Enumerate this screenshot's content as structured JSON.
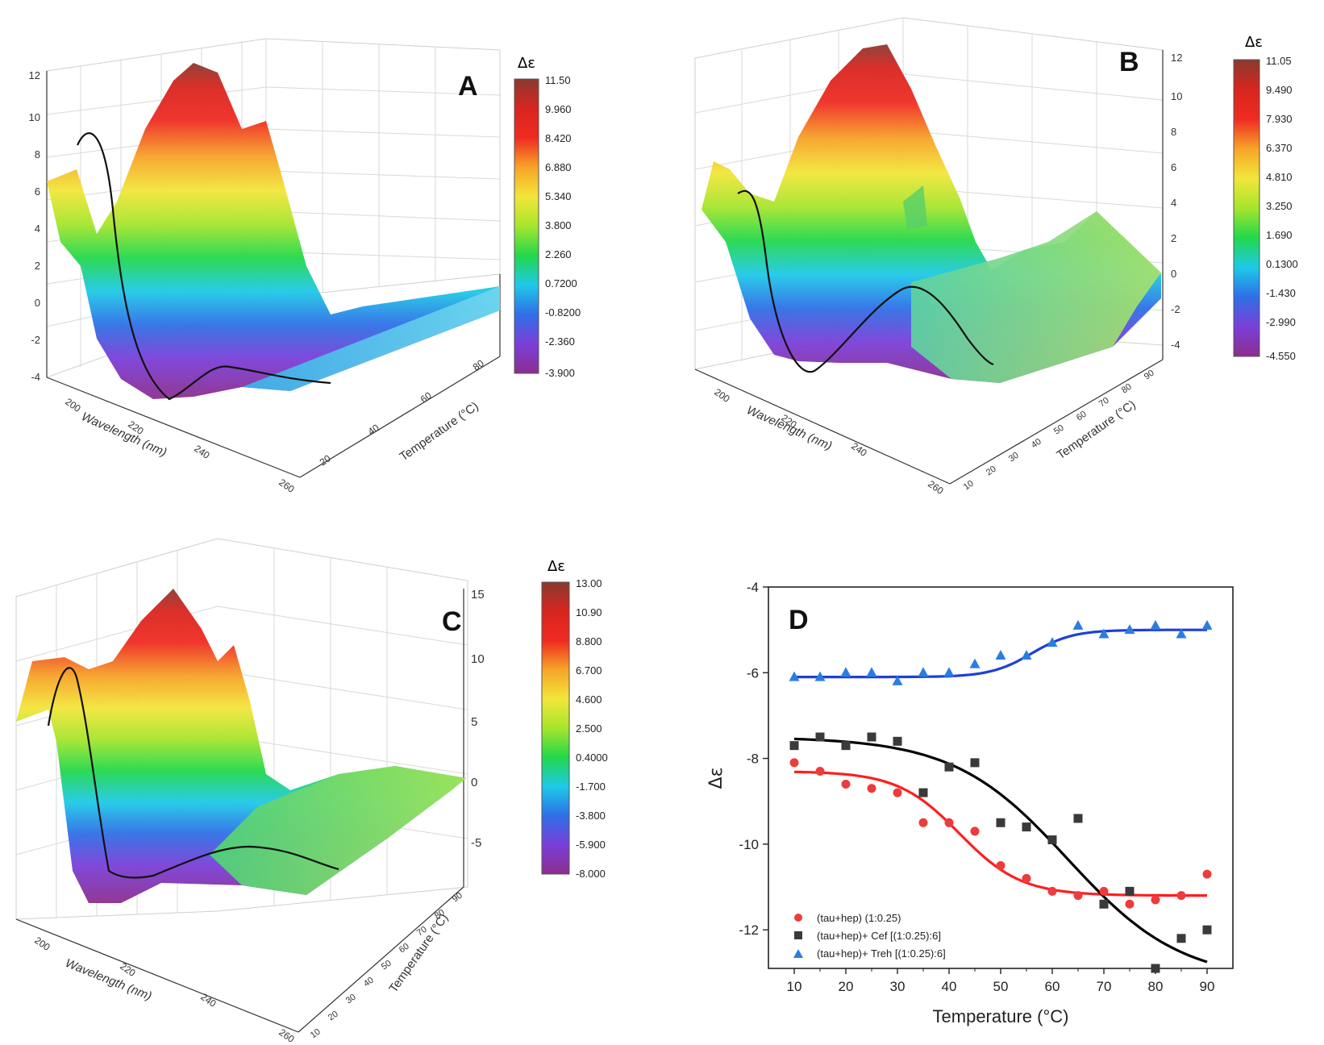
{
  "figure": {
    "colorbar_title": "Δε",
    "colorbar_stops": [
      "#8c2e8e",
      "#7a3fd8",
      "#2f6fe6",
      "#1ec9e8",
      "#22d84b",
      "#a6e52d",
      "#f2e63a",
      "#f7a428",
      "#ef2b22",
      "#d8251f",
      "#8a3a30"
    ]
  },
  "chart_data": [
    {
      "id": "A",
      "type": "surface3d",
      "title": "A",
      "xlabel": "Wavelength (nm)",
      "ylabel": "Temperature (°C)",
      "zlabel": "Δε",
      "x_ticks": [
        "200",
        "220",
        "240",
        "260"
      ],
      "y_ticks": [
        "20",
        "40",
        "60",
        "80"
      ],
      "z_ticks": [
        "-4",
        "-2",
        "0",
        "2",
        "4",
        "6",
        "8",
        "10",
        "12"
      ],
      "colorbar_ticks": [
        "11.50",
        "9.960",
        "8.420",
        "6.880",
        "5.340",
        "3.800",
        "2.260",
        "0.7200",
        "-0.8200",
        "-2.360",
        "-3.900"
      ]
    },
    {
      "id": "B",
      "type": "surface3d",
      "title": "B",
      "xlabel": "Wavelength (nm)",
      "ylabel": "Temperature (°C)",
      "zlabel": "Δε",
      "x_ticks": [
        "200",
        "220",
        "240",
        "260"
      ],
      "y_ticks": [
        "10",
        "20",
        "30",
        "40",
        "50",
        "60",
        "70",
        "80",
        "90"
      ],
      "z_ticks": [
        "-4",
        "-2",
        "0",
        "2",
        "4",
        "6",
        "8",
        "10",
        "12"
      ],
      "colorbar_ticks": [
        "11.05",
        "9.490",
        "7.930",
        "6.370",
        "4.810",
        "3.250",
        "1.690",
        "0.1300",
        "-1.430",
        "-2.990",
        "-4.550"
      ]
    },
    {
      "id": "C",
      "type": "surface3d",
      "title": "C",
      "xlabel": "Wavelength (nm)",
      "ylabel": "Temperature (°C)",
      "zlabel": "Δε",
      "x_ticks": [
        "200",
        "220",
        "240",
        "260"
      ],
      "y_ticks": [
        "10",
        "20",
        "30",
        "40",
        "50",
        "60",
        "70",
        "80",
        "90"
      ],
      "z_ticks": [
        "-5",
        "0",
        "5",
        "10",
        "15"
      ],
      "colorbar_ticks": [
        "13.00",
        "10.90",
        "8.800",
        "6.700",
        "4.600",
        "2.500",
        "0.4000",
        "-1.700",
        "-3.800",
        "-5.900",
        "-8.000"
      ]
    },
    {
      "id": "D",
      "type": "scatter",
      "title": "D",
      "xlabel": "Temperature (°C)",
      "ylabel": "Δε",
      "xlim": [
        5,
        95
      ],
      "ylim": [
        -12.9,
        -4
      ],
      "x_ticks": [
        10,
        20,
        30,
        40,
        50,
        60,
        70,
        80,
        90
      ],
      "y_ticks": [
        -4,
        -6,
        -8,
        -10,
        -12
      ],
      "x": [
        10,
        15,
        20,
        25,
        30,
        35,
        40,
        45,
        50,
        55,
        60,
        65,
        70,
        75,
        80,
        85,
        90
      ],
      "series": [
        {
          "name": "(tau+hep) (1:0.25)",
          "marker": "circle",
          "color": "#ee3b3b",
          "values": [
            -8.1,
            -8.3,
            -8.6,
            -8.7,
            -8.8,
            -9.5,
            -9.5,
            -9.7,
            -10.5,
            -10.8,
            -11.1,
            -11.2,
            -11.1,
            -11.4,
            -11.3,
            -11.2,
            -10.7
          ],
          "fit": {
            "bottom": -8.3,
            "top": -11.2,
            "midpoint": 42,
            "slope": 6
          }
        },
        {
          "name": "(tau+hep)+ Cef [(1:0.25):6]",
          "marker": "square",
          "color": "#3a3a3a",
          "values": [
            -7.7,
            -7.5,
            -7.7,
            -7.5,
            -7.6,
            -8.8,
            -8.2,
            -8.1,
            -9.5,
            -9.6,
            -9.9,
            -9.4,
            -11.4,
            -11.1,
            -12.9,
            -12.2,
            -12.0
          ],
          "fit": {
            "bottom": -7.5,
            "top": -13.2,
            "midpoint": 63,
            "slope": 11
          }
        },
        {
          "name": "(tau+hep)+ Treh [(1:0.25):6]",
          "marker": "triangle",
          "color": "#2a7de1",
          "values": [
            -6.1,
            -6.1,
            -6.0,
            -6.0,
            -6.2,
            -6.0,
            -6.0,
            -5.8,
            -5.6,
            -5.6,
            -5.3,
            -4.9,
            -5.1,
            -5.0,
            -4.9,
            -5.1,
            -4.9
          ],
          "fit": {
            "bottom": -6.1,
            "top": -5.0,
            "midpoint": 56,
            "slope": 4
          }
        }
      ]
    }
  ]
}
